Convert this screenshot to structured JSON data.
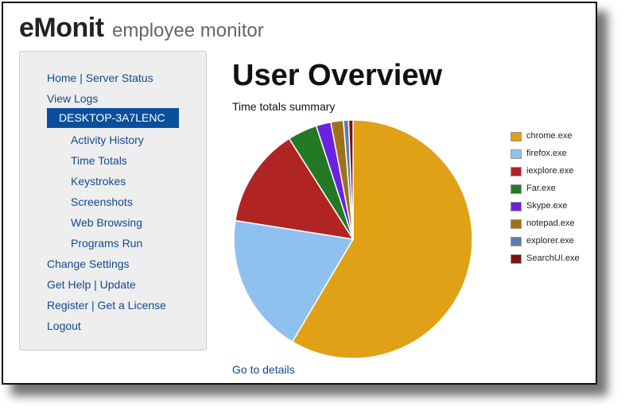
{
  "header": {
    "logo": "eMonit",
    "tagline": "employee monitor"
  },
  "sidebar": {
    "home": "Home | Server Status",
    "view_logs": "View Logs",
    "computer": "DESKTOP-3A7LENC",
    "sub_items": [
      "Activity History",
      "Time Totals",
      "Keystrokes",
      "Screenshots",
      "Web Browsing",
      "Programs Run"
    ],
    "change_settings": "Change Settings",
    "help": "Get Help | Update",
    "register": "Register | Get a License",
    "logout": "Logout"
  },
  "main": {
    "title": "User Overview",
    "summary_label": "Time totals summary",
    "details_link": "Go to details"
  },
  "chart_data": {
    "type": "pie",
    "title": "",
    "legend_position": "right",
    "series": [
      {
        "name": "chrome.exe",
        "value": 58.5,
        "color": "#e0a117"
      },
      {
        "name": "firefox.exe",
        "value": 19.0,
        "color": "#8ec1f0"
      },
      {
        "name": "iexplore.exe",
        "value": 13.5,
        "color": "#b02424"
      },
      {
        "name": "Far.exe",
        "value": 4.0,
        "color": "#247a24"
      },
      {
        "name": "Skype.exe",
        "value": 2.0,
        "color": "#6a22e0"
      },
      {
        "name": "notepad.exe",
        "value": 1.7,
        "color": "#a0701a"
      },
      {
        "name": "explorer.exe",
        "value": 0.7,
        "color": "#5c7ea8"
      },
      {
        "name": "SearchUI.exe",
        "value": 0.6,
        "color": "#7a1414"
      }
    ]
  }
}
